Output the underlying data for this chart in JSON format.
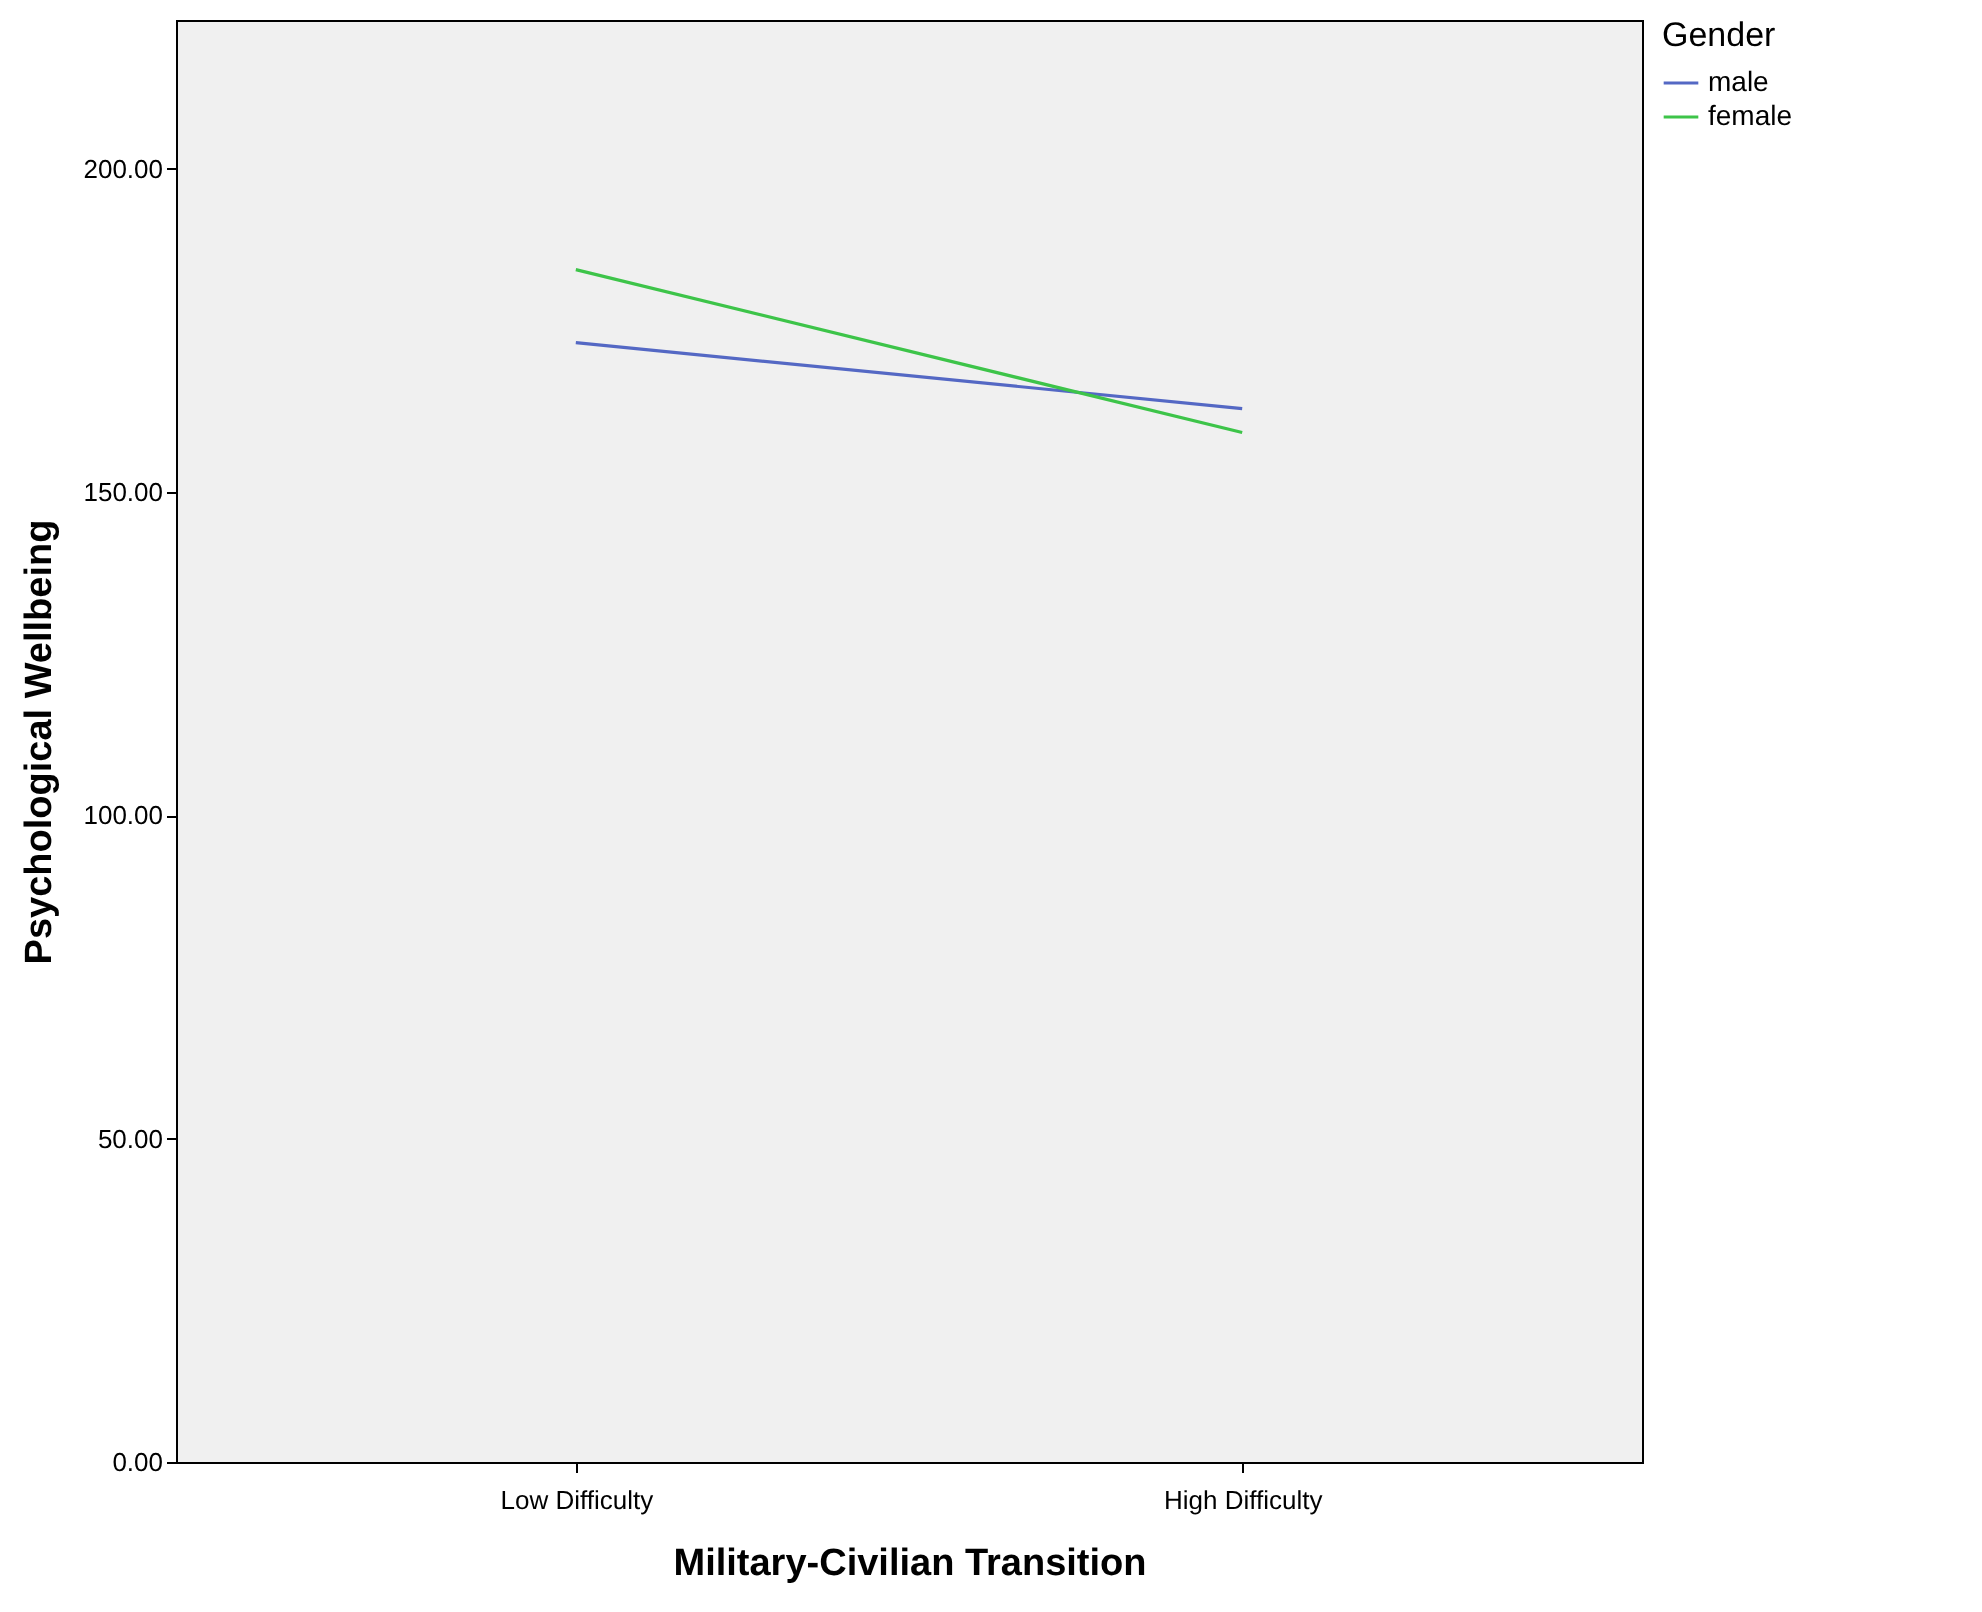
{
  "chart_data": {
    "type": "line",
    "xlabel": "Military-Civilian Transition",
    "ylabel": "Psychological Wellbeing",
    "legend_title": "Gender",
    "legend": "top right",
    "grid": false,
    "marker": "none",
    "categories": [
      "Low Difficulty",
      "High Difficulty"
    ],
    "series": [
      {
        "name": "male",
        "color": "#5468c4",
        "values": [
          173.1,
          162.9
        ]
      },
      {
        "name": "female",
        "color": "#3dc449",
        "values": [
          184.4,
          159.2
        ]
      }
    ],
    "ylim": [
      0,
      223
    ],
    "yticks": [
      {
        "value": 0,
        "label": "0.00"
      },
      {
        "value": 50,
        "label": "50.00"
      },
      {
        "value": 100,
        "label": "100.00"
      },
      {
        "value": 150,
        "label": "150.00"
      },
      {
        "value": 200,
        "label": "200.00"
      }
    ]
  }
}
